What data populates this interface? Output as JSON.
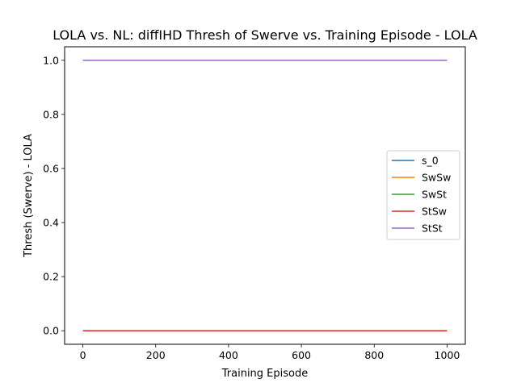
{
  "chart_data": {
    "type": "line",
    "title": "LOLA vs. NL: diffIHD Thresh of Swerve vs. Training Episode - LOLA",
    "xlabel": "Training Episode",
    "ylabel": "Thresh (Swerve) - LOLA",
    "xlim": [
      -50,
      1050
    ],
    "ylim": [
      -0.05,
      1.05
    ],
    "xticks": [
      0,
      200,
      400,
      600,
      800,
      1000
    ],
    "yticks": [
      0.0,
      0.2,
      0.4,
      0.6,
      0.8,
      1.0
    ],
    "xtick_labels": [
      "0",
      "200",
      "400",
      "600",
      "800",
      "1000"
    ],
    "ytick_labels": [
      "0.0",
      "0.2",
      "0.4",
      "0.6",
      "0.8",
      "1.0"
    ],
    "grid": false,
    "legend_position": "center-right",
    "series": [
      {
        "name": "s_0",
        "color": "#1f77b4",
        "x": [
          0,
          1000
        ],
        "y": [
          0,
          0
        ]
      },
      {
        "name": "SwSw",
        "color": "#ff7f0e",
        "x": [
          0,
          1000
        ],
        "y": [
          0,
          0
        ]
      },
      {
        "name": "SwSt",
        "color": "#2ca02c",
        "x": [
          0,
          1000
        ],
        "y": [
          0,
          0
        ]
      },
      {
        "name": "StSw",
        "color": "#d62728",
        "x": [
          0,
          1000
        ],
        "y": [
          0,
          0
        ]
      },
      {
        "name": "StSt",
        "color": "#9467bd",
        "x": [
          0,
          1000
        ],
        "y": [
          1,
          1
        ]
      }
    ]
  }
}
